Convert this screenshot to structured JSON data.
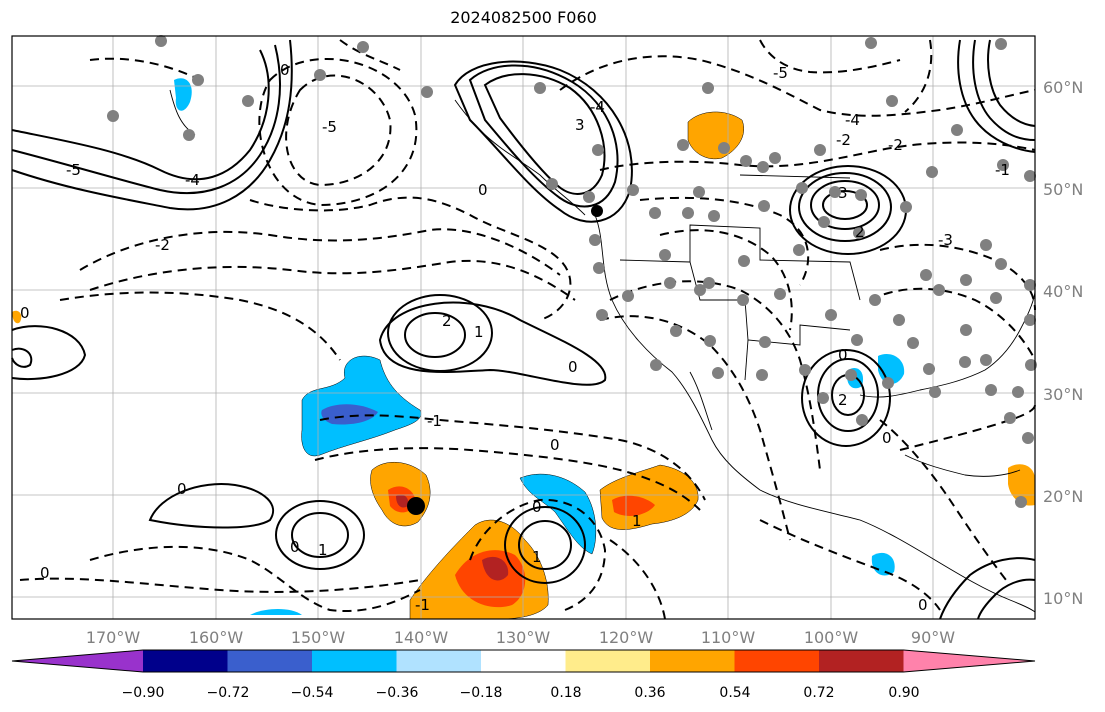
{
  "title": "2024082500 F060",
  "map": {
    "lat_labels": [
      "10°N",
      "20°N",
      "30°N",
      "40°N",
      "50°N",
      "60°N"
    ],
    "lon_labels": [
      "170°W",
      "160°W",
      "150°W",
      "140°W",
      "130°W",
      "120°W",
      "110°W",
      "100°W",
      "90°W"
    ],
    "contour_labels": [
      "-5",
      "-4",
      "-3",
      "-2",
      "-1",
      "0",
      "1",
      "2",
      "3"
    ]
  },
  "colorbar": {
    "ticks": [
      "−0.90",
      "−0.72",
      "−0.54",
      "−0.36",
      "−0.18",
      "0.18",
      "0.36",
      "0.54",
      "0.72",
      "0.90"
    ],
    "colors": [
      "#9932cc",
      "#00008b",
      "#3a5fcd",
      "#00bfff",
      "#b0e2ff",
      "#ffffff",
      "#ffec8b",
      "#ffa500",
      "#ff4500",
      "#b22222",
      "#ff82ab"
    ]
  }
}
